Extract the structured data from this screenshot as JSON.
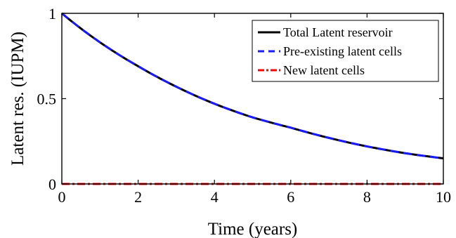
{
  "chart_data": {
    "type": "line",
    "title": "",
    "xlabel": "Time (years)",
    "ylabel": "Latent res. (IUPM)",
    "xlim": [
      0,
      10
    ],
    "ylim": [
      0,
      1
    ],
    "xticks": [
      0,
      2,
      4,
      6,
      8,
      10
    ],
    "yticks": [
      0,
      0.5,
      1
    ],
    "xtick_labels": [
      "0",
      "2",
      "4",
      "6",
      "8",
      "10"
    ],
    "ytick_labels": [
      "0",
      "0.5",
      "1"
    ],
    "grid": false,
    "legend_position": "top-right",
    "x": [
      0,
      1,
      2,
      3,
      4,
      5,
      6,
      7,
      8,
      9,
      10
    ],
    "series": [
      {
        "name": "Total Latent reservoir",
        "color": "#000000",
        "style": "solid",
        "values": [
          1.0,
          0.83,
          0.69,
          0.57,
          0.47,
          0.39,
          0.33,
          0.27,
          0.22,
          0.18,
          0.15
        ]
      },
      {
        "name": "Pre-existing latent cells",
        "color": "#1a1aff",
        "style": "dashed",
        "values": [
          1.0,
          0.83,
          0.69,
          0.57,
          0.47,
          0.39,
          0.33,
          0.27,
          0.22,
          0.18,
          0.15
        ]
      },
      {
        "name": "New latent cells",
        "color": "#ff0000",
        "style": "dash-dot",
        "values": [
          0,
          0,
          0,
          0,
          0,
          0,
          0,
          0,
          0,
          0,
          0
        ]
      }
    ]
  }
}
